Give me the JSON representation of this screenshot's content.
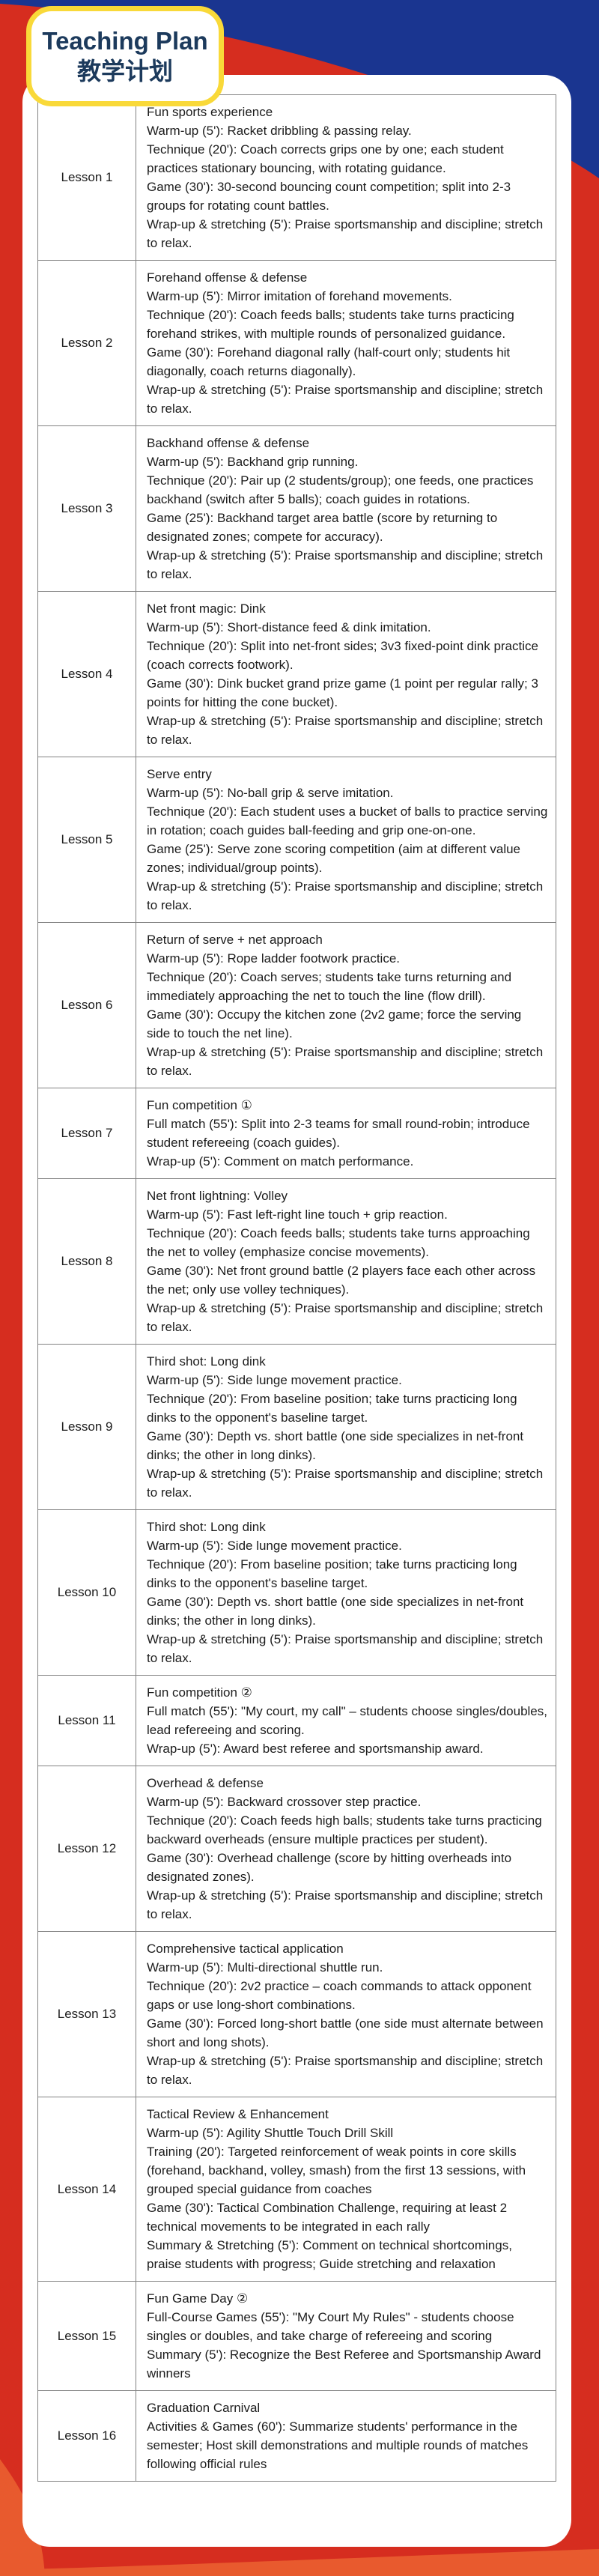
{
  "header": {
    "title_en": "Teaching Plan",
    "title_zh": "教学计划"
  },
  "colors": {
    "background_red": "#d62d1f",
    "top_band_navy": "#1a3590",
    "bottom_wave_orange": "#e85a2e",
    "title_text_navy": "#1c3a5c",
    "card_border_yellow": "#f9d939",
    "table_border_gray": "#828282"
  },
  "table": {
    "lessons": [
      {
        "label": "Lesson 1",
        "lines": [
          "Fun sports experience",
          "Warm-up (5'): Racket dribbling & passing relay.",
          "Technique (20'): Coach corrects grips one by one; each student practices stationary bouncing, with rotating guidance.",
          "Game (30'): 30-second bouncing count competition; split into 2-3 groups for rotating count battles.",
          "Wrap-up & stretching (5'): Praise sportsmanship and discipline; stretch to relax."
        ]
      },
      {
        "label": "Lesson 2",
        "lines": [
          "Forehand offense & defense",
          "Warm-up (5'): Mirror imitation of forehand movements.",
          "Technique (20'): Coach feeds balls; students take turns practicing forehand strikes, with multiple rounds of personalized guidance.",
          "Game (30'): Forehand diagonal rally (half-court only; students hit diagonally, coach returns diagonally).",
          "Wrap-up & stretching (5'): Praise sportsmanship and discipline; stretch to relax."
        ]
      },
      {
        "label": "Lesson 3",
        "lines": [
          "Backhand offense & defense",
          "Warm-up (5'): Backhand grip running.",
          "Technique (20'): Pair up (2 students/group); one feeds, one practices backhand (switch after 5 balls); coach guides in rotations.",
          "Game (25'): Backhand target area battle (score by returning to designated zones; compete for accuracy).",
          "Wrap-up & stretching (5'): Praise sportsmanship and discipline; stretch to relax."
        ]
      },
      {
        "label": "Lesson 4",
        "lines": [
          "Net front magic: Dink",
          "Warm-up (5'): Short-distance feed & dink imitation.",
          "Technique (20'): Split into net-front sides; 3v3 fixed-point dink practice (coach corrects footwork).",
          "Game (30'): Dink bucket grand prize game (1 point per regular rally; 3 points for hitting the cone bucket).",
          "Wrap-up & stretching (5'): Praise sportsmanship and discipline; stretch to relax."
        ]
      },
      {
        "label": "Lesson 5",
        "lines": [
          "Serve entry",
          "Warm-up (5'): No-ball grip & serve imitation.",
          "Technique (20'): Each student uses a bucket of balls to practice serving in rotation; coach guides ball-feeding and grip one-on-one.",
          "Game (25'): Serve zone scoring competition (aim at different value zones; individual/group points).",
          "Wrap-up & stretching (5'): Praise sportsmanship and discipline; stretch to relax."
        ]
      },
      {
        "label": "Lesson 6",
        "lines": [
          "Return of serve + net approach",
          "Warm-up (5'): Rope ladder footwork practice.",
          "Technique (20'): Coach serves; students take turns returning and immediately approaching the net to touch the line (flow drill).",
          "Game (30'): Occupy the kitchen zone (2v2 game; force the serving side to touch the net line).",
          "Wrap-up & stretching (5'): Praise sportsmanship and discipline; stretch to relax."
        ]
      },
      {
        "label": "Lesson 7",
        "lines": [
          "Fun competition ①",
          "Full match (55'): Split into 2-3 teams for small round-robin; introduce student refereeing (coach guides).",
          "Wrap-up (5'): Comment on match performance."
        ]
      },
      {
        "label": "Lesson 8",
        "lines": [
          "Net front lightning: Volley",
          "Warm-up (5'): Fast left-right line touch + grip reaction.",
          "Technique (20'): Coach feeds balls; students take turns approaching the net to volley (emphasize concise movements).",
          "Game (30'): Net front ground battle (2 players face each other across the net; only use volley techniques).",
          "Wrap-up & stretching (5'): Praise sportsmanship and discipline; stretch to relax."
        ]
      },
      {
        "label": "Lesson 9",
        "lines": [
          "Third shot: Long dink",
          "Warm-up (5'): Side lunge movement practice.",
          "Technique (20'): From baseline position; take turns practicing long dinks to the opponent's baseline target.",
          "Game (30'): Depth vs. short battle (one side specializes in net-front dinks; the other in long dinks).",
          "Wrap-up & stretching (5'): Praise sportsmanship and discipline; stretch to relax."
        ]
      },
      {
        "label": "Lesson 10",
        "lines": [
          "Third shot: Long dink",
          "Warm-up (5'): Side lunge movement practice.",
          "Technique (20'): From baseline position; take turns practicing long dinks to the opponent's baseline target.",
          "Game (30'): Depth vs. short battle (one side specializes in net-front dinks; the other in long dinks).",
          "Wrap-up & stretching (5'): Praise sportsmanship and discipline; stretch to relax."
        ]
      },
      {
        "label": "Lesson 11",
        "lines": [
          "Fun competition ②",
          "Full match (55'): \"My court, my call\" – students choose singles/doubles, lead refereeing and scoring.",
          "Wrap-up (5'): Award best referee and sportsmanship award."
        ]
      },
      {
        "label": "Lesson 12",
        "lines": [
          "Overhead & defense",
          "Warm-up (5'): Backward crossover step practice.",
          "Technique (20'): Coach feeds high balls; students take turns practicing backward overheads (ensure multiple practices per student).",
          "Game (30'): Overhead challenge (score by hitting overheads into designated zones).",
          "Wrap-up & stretching (5'): Praise sportsmanship and discipline; stretch to relax."
        ]
      },
      {
        "label": "Lesson 13",
        "lines": [
          "Comprehensive tactical application",
          "Warm-up (5'): Multi-directional shuttle run.",
          "Technique (20'): 2v2 practice – coach commands to attack opponent gaps or use long-short combinations.",
          "Game (30'): Forced long-short battle (one side must alternate between short and long shots).",
          "Wrap-up & stretching (5'): Praise sportsmanship and discipline; stretch to relax."
        ]
      },
      {
        "label": "Lesson 14",
        "lines": [
          "Tactical Review & Enhancement",
          "Warm-up (5'): Agility Shuttle Touch Drill Skill",
          "Training (20'): Targeted reinforcement of weak points in core skills (forehand, backhand, volley, smash) from the first 13 sessions, with grouped special guidance from coaches",
          "Game (30'): Tactical Combination Challenge, requiring at least 2 technical movements to be integrated in each rally",
          "Summary & Stretching (5'): Comment on technical shortcomings, praise students with progress; Guide stretching and relaxation"
        ]
      },
      {
        "label": "Lesson 15",
        "lines": [
          "Fun Game Day ②",
          "Full-Course Games (55'): \"My Court My Rules\" - students choose singles or doubles, and take charge of refereeing and scoring",
          "Summary (5'): Recognize the Best Referee and Sportsmanship Award winners"
        ]
      },
      {
        "label": "Lesson 16",
        "lines": [
          "Graduation Carnival",
          "Activities & Games (60'): Summarize students' performance in the semester; Host skill demonstrations and multiple rounds of matches following official rules"
        ]
      }
    ]
  }
}
